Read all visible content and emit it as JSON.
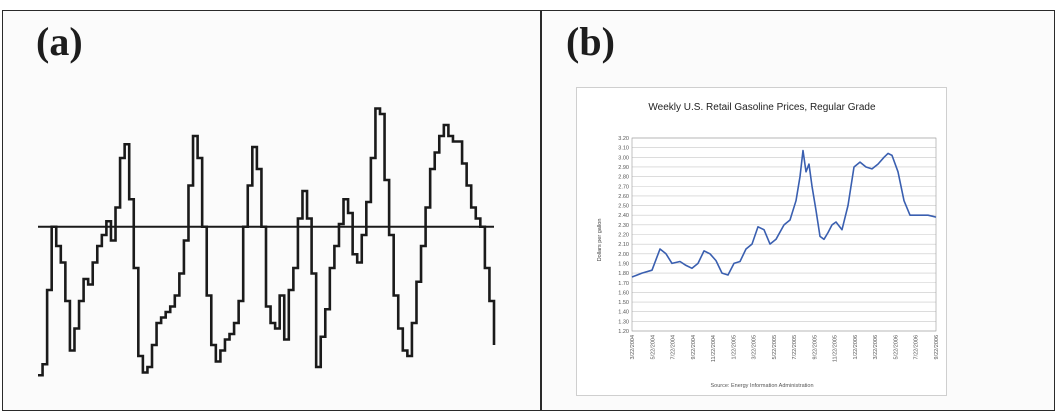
{
  "labels": {
    "a": "(a)",
    "b": "(b)"
  },
  "colors": {
    "line_a": "#1a1a1a",
    "line_b": "#3a5fb0",
    "grid": "#c8c8c8"
  },
  "chart_data": [
    {
      "type": "line",
      "title": "",
      "ylim": [
        0,
        1
      ],
      "xlim": [
        0,
        1
      ],
      "reference_line": 0.55,
      "x": [
        0.0,
        0.01,
        0.02,
        0.03,
        0.04,
        0.05,
        0.06,
        0.07,
        0.08,
        0.09,
        0.1,
        0.11,
        0.12,
        0.13,
        0.14,
        0.15,
        0.16,
        0.17,
        0.18,
        0.19,
        0.2,
        0.21,
        0.22,
        0.23,
        0.24,
        0.25,
        0.26,
        0.27,
        0.28,
        0.29,
        0.3,
        0.31,
        0.32,
        0.33,
        0.34,
        0.35,
        0.36,
        0.37,
        0.38,
        0.39,
        0.4,
        0.41,
        0.42,
        0.43,
        0.44,
        0.45,
        0.46,
        0.47,
        0.48,
        0.49,
        0.5,
        0.51,
        0.52,
        0.53,
        0.54,
        0.55,
        0.56,
        0.57,
        0.58,
        0.59,
        0.6,
        0.61,
        0.62,
        0.63,
        0.64,
        0.65,
        0.66,
        0.67,
        0.68,
        0.69,
        0.7,
        0.71,
        0.72,
        0.73,
        0.74,
        0.75,
        0.76,
        0.77,
        0.78,
        0.79,
        0.8,
        0.81,
        0.82,
        0.83,
        0.84,
        0.85,
        0.86,
        0.87,
        0.88,
        0.89,
        0.9,
        0.91,
        0.92,
        0.93,
        0.94,
        0.95,
        0.96,
        0.97,
        0.98,
        0.99,
        1.0
      ],
      "y": [
        0.01,
        0.05,
        0.32,
        0.55,
        0.48,
        0.42,
        0.28,
        0.1,
        0.18,
        0.28,
        0.36,
        0.34,
        0.42,
        0.48,
        0.52,
        0.57,
        0.5,
        0.62,
        0.8,
        0.85,
        0.65,
        0.4,
        0.08,
        0.02,
        0.04,
        0.12,
        0.2,
        0.22,
        0.24,
        0.26,
        0.3,
        0.38,
        0.5,
        0.7,
        0.88,
        0.8,
        0.55,
        0.3,
        0.12,
        0.06,
        0.1,
        0.14,
        0.16,
        0.2,
        0.28,
        0.55,
        0.7,
        0.84,
        0.76,
        0.55,
        0.26,
        0.2,
        0.18,
        0.3,
        0.14,
        0.32,
        0.4,
        0.58,
        0.68,
        0.58,
        0.38,
        0.04,
        0.15,
        0.25,
        0.4,
        0.48,
        0.56,
        0.65,
        0.6,
        0.45,
        0.42,
        0.52,
        0.64,
        0.8,
        0.98,
        0.96,
        0.72,
        0.52,
        0.3,
        0.18,
        0.1,
        0.08,
        0.2,
        0.35,
        0.48,
        0.62,
        0.76,
        0.82,
        0.88,
        0.92,
        0.88,
        0.86,
        0.86,
        0.78,
        0.7,
        0.62,
        0.58,
        0.55,
        0.4,
        0.28,
        0.12
      ]
    },
    {
      "type": "line",
      "title": "Weekly U.S. Retail Gasoline Prices, Regular Grade",
      "ylabel": "Dollars per gallon",
      "source": "Source: Energy Information Administration",
      "ylim": [
        1.2,
        3.2
      ],
      "yticks": [
        "3.20",
        "3.10",
        "3.00",
        "2.90",
        "2.80",
        "2.70",
        "2.60",
        "2.50",
        "2.40",
        "2.30",
        "2.20",
        "2.10",
        "2.00",
        "1.90",
        "1.80",
        "1.70",
        "1.60",
        "1.50",
        "1.40",
        "1.30",
        "1.20"
      ],
      "xticks": [
        "3/22/2004",
        "5/22/2004",
        "7/22/2004",
        "9/22/2004",
        "11/22/2004",
        "1/22/2005",
        "3/22/2005",
        "5/22/2005",
        "7/22/2005",
        "9/22/2005",
        "11/22/2005",
        "1/22/2006",
        "3/22/2006",
        "5/22/2006",
        "7/22/2006",
        "9/22/2006"
      ],
      "xrange": [
        0,
        15.2
      ],
      "x": [
        0,
        0.5,
        1,
        1.4,
        1.7,
        2,
        2.4,
        2.7,
        3,
        3.3,
        3.6,
        3.9,
        4.2,
        4.5,
        4.8,
        5.1,
        5.4,
        5.7,
        6,
        6.3,
        6.6,
        6.9,
        7.2,
        7.6,
        7.9,
        8.2,
        8.4,
        8.55,
        8.7,
        8.85,
        9,
        9.2,
        9.4,
        9.6,
        9.8,
        10,
        10.2,
        10.5,
        10.8,
        11.1,
        11.4,
        11.7,
        12,
        12.3,
        12.6,
        12.8,
        13,
        13.3,
        13.6,
        13.9,
        14.2,
        14.5,
        14.8,
        15.2
      ],
      "y": [
        1.76,
        1.8,
        1.83,
        2.05,
        2.0,
        1.9,
        1.92,
        1.88,
        1.85,
        1.9,
        2.03,
        2.0,
        1.93,
        1.8,
        1.78,
        1.9,
        1.92,
        2.05,
        2.1,
        2.28,
        2.25,
        2.1,
        2.15,
        2.3,
        2.35,
        2.55,
        2.8,
        3.07,
        2.85,
        2.93,
        2.7,
        2.45,
        2.18,
        2.15,
        2.22,
        2.3,
        2.33,
        2.25,
        2.5,
        2.9,
        2.95,
        2.9,
        2.88,
        2.93,
        3.0,
        3.04,
        3.02,
        2.85,
        2.55,
        2.4,
        2.4,
        2.4,
        2.4,
        2.38
      ]
    }
  ]
}
